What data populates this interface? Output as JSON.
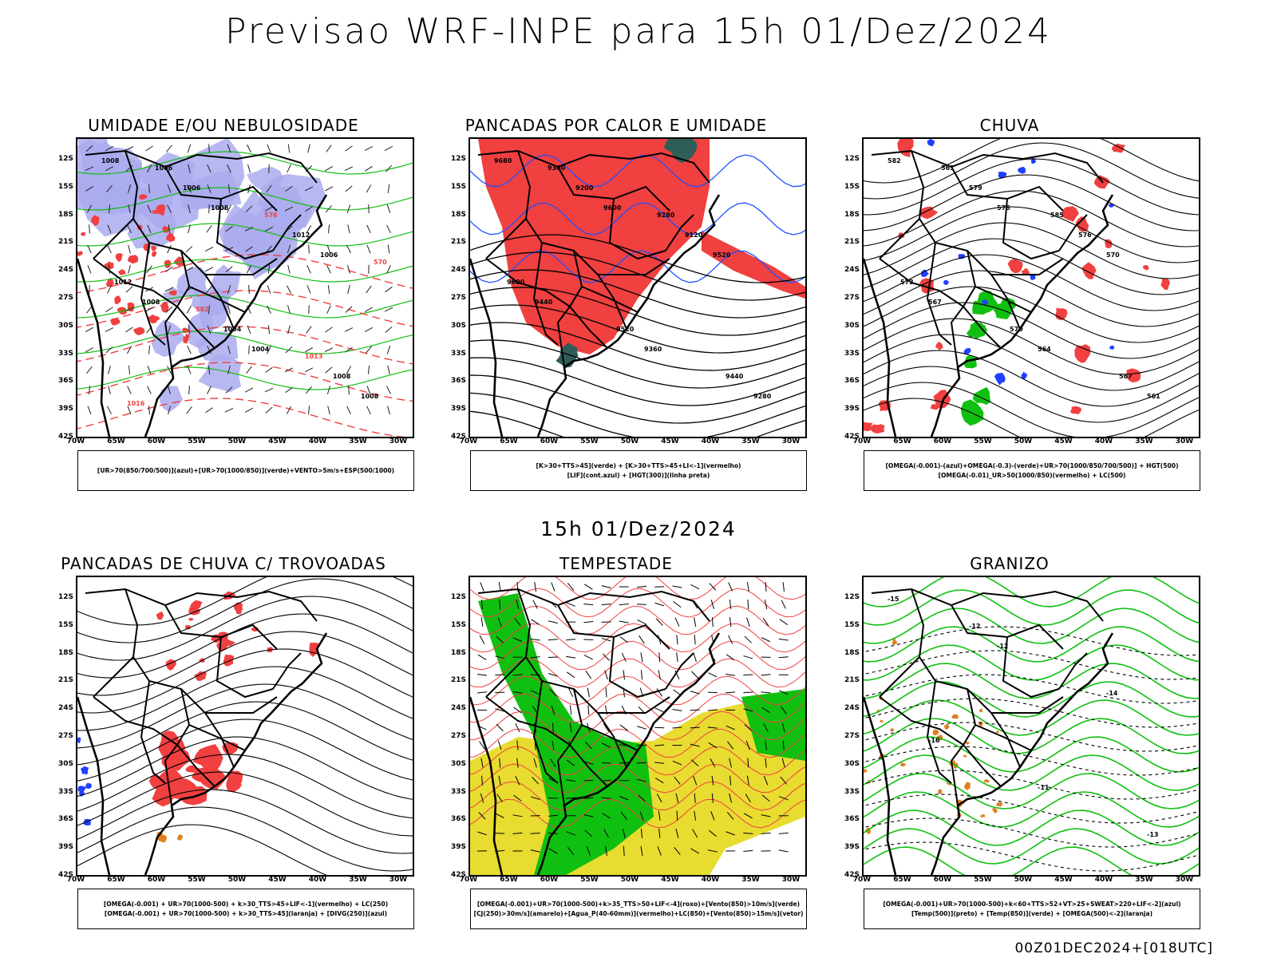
{
  "header": {
    "title": "Previsao WRF-INPE  para 15h 01/Dez/2024"
  },
  "mid_title": "15h 01/Dez/2024",
  "footer": "00Z01DEC2024+[018UTC]",
  "axes": {
    "lat_labels": [
      "12S",
      "15S",
      "18S",
      "21S",
      "24S",
      "27S",
      "30S",
      "33S",
      "36S",
      "39S",
      "42S"
    ],
    "lon_labels": [
      "70W",
      "65W",
      "60W",
      "55W",
      "50W",
      "45W",
      "40W",
      "35W",
      "30W"
    ]
  },
  "panels": [
    {
      "title": "UMIDADE E/OU NEBULOSIDADE",
      "legend": [
        "[UR>70(850/700/500)](azul)+[UR>70(1000/850)](verde)+VENTO>5m/s+ESP(500/1000)"
      ],
      "labels": [
        "1008",
        "1008",
        "1006",
        "1008",
        "1004",
        "1008",
        "1006",
        "1012",
        "1012",
        "1004",
        "1008",
        "1006",
        "576",
        "570",
        "582",
        "1013",
        "1016"
      ]
    },
    {
      "title": "PANCADAS POR CALOR E UMIDADE",
      "legend": [
        "[K>30+TTS>45](verde) + [K>30+TTS>45+LI<-1](vermelho)",
        "[LIF](cont.azul) + [HGT(300)](linha preta)"
      ],
      "labels": [
        "9680",
        "9600",
        "9520",
        "9440",
        "9360",
        "9280",
        "9200",
        "9120",
        "9600",
        "9520",
        "9440",
        "9360",
        "9280"
      ]
    },
    {
      "title": "CHUVA",
      "legend": [
        "[OMEGA(-0.001)-(azul)+OMEGA(-0.3)-(verde)+UR>70(1000/850/700/500)] + HGT(500)",
        "[OMEGA(-0.01)_UR>50(1000/850)(vermelho) + LC(500)"
      ],
      "labels": [
        "582",
        "576",
        "570",
        "567",
        "564",
        "561",
        "579",
        "576",
        "573",
        "570",
        "567",
        "561",
        "585"
      ]
    },
    {
      "title": "PANCADAS DE CHUVA C/ TROVOADAS",
      "legend": [
        "[OMEGA(-0.001) + UR>70(1000-500) + k>30_TTS>45+LIF<-1](vermelho) + LC(250)",
        "[OMEGA(-0.001) + UR>70(1000-500) + k>30_TTS>45](laranja) + [DIVG(250)](azul)"
      ],
      "labels": []
    },
    {
      "title": "TEMPESTADE",
      "legend": [
        "[OMEGA(-0.001)+UR>70(1000-500)+k>35_TTS>50+LIF<-4](roxo)+[Vento(850)>10m/s](verde)",
        "[CJ(250)>30m/s](amarelo)+[Agua_P(40-60mm)](vermelho)+LC(850)+[Vento(850)>15m/s](vetor)"
      ],
      "labels": []
    },
    {
      "title": "GRANIZO",
      "legend": [
        "[OMEGA(-0.001)+UR>70(1000-500)+k<60+TTS>52+VT>25+SWEAT>220+LIF<-2](azul)",
        "[Temp(500)](preto) + [Temp(850)](verde) + [OMEGA(500)<-2](laranja)"
      ],
      "labels": [
        "-15",
        "-12",
        "-14",
        "-16",
        "-11",
        "-13",
        "-12"
      ]
    }
  ],
  "colors": {
    "red": "#f04040",
    "green": "#10c010",
    "blue": "#2040ff",
    "lav": "#aaaaee",
    "yellow": "#e8dc30",
    "orange": "#e08020",
    "teal": "#2f5e58"
  }
}
